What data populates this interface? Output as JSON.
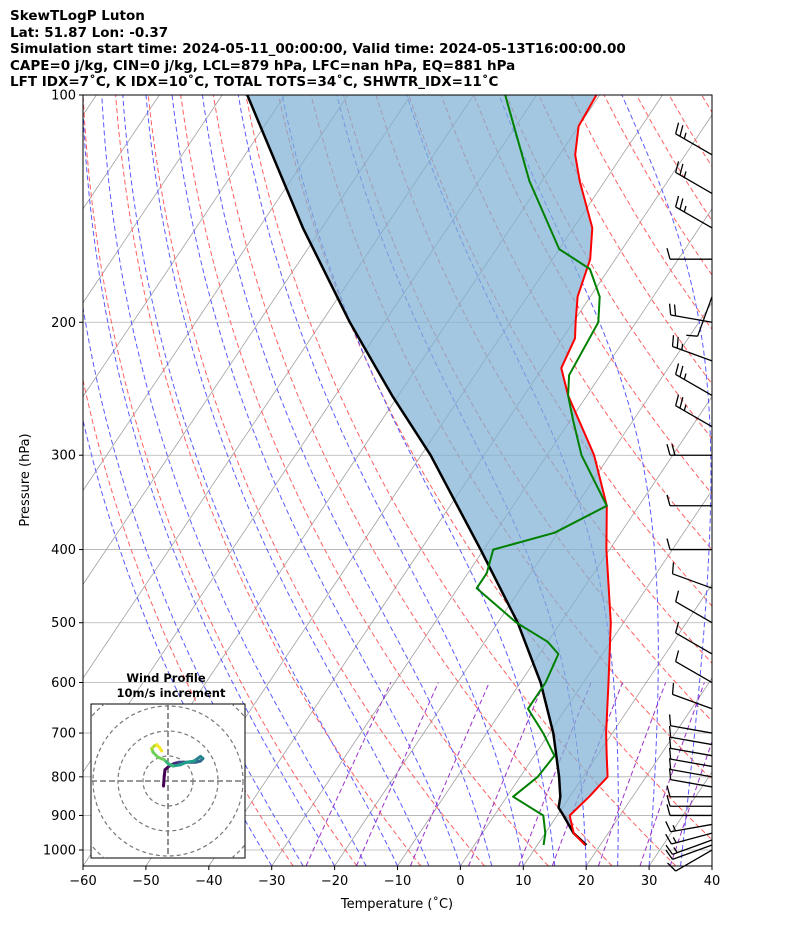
{
  "header": {
    "title": "SkewTLogP Luton",
    "location": "Lat: 51.87   Lon: -0.37",
    "times": "Simulation start time: 2024-05-11_00:00:00, Valid time: 2024-05-13T16:00:00.00",
    "indices1": "CAPE=0 j/kg, CIN=0 j/kg, LCL=879 hPa, LFC=nan hPa, EQ=881 hPa",
    "indices2": "LFT IDX=7˚C, K IDX=10˚C, TOTAL TOTS=34˚C, SHWTR_IDX=11˚C"
  },
  "chart_data": {
    "type": "line",
    "subtype": "skew-T log-P diagram",
    "xlabel": "Temperature ($^\\circ$C)",
    "ylabel": "Pressure (hPa)",
    "xlim": [
      -60,
      40
    ],
    "ylim": [
      1050,
      100
    ],
    "y_scale": "log",
    "x_ticks": [
      "−60",
      "−50",
      "−40",
      "−30",
      "−20",
      "−10",
      "0",
      "10",
      "20",
      "30",
      "40"
    ],
    "x_tick_values": [
      -60,
      -50,
      -40,
      -30,
      -20,
      -10,
      0,
      10,
      20,
      30,
      40
    ],
    "y_ticks": [
      "1000",
      "900",
      "800",
      "700",
      "600",
      "500",
      "400",
      "300",
      "200",
      "100"
    ],
    "y_tick_values": [
      1000,
      900,
      800,
      700,
      600,
      500,
      400,
      300,
      200,
      100
    ],
    "grid": true,
    "colors": {
      "temperature": "#ff0000",
      "dewpoint": "#008000",
      "parcel": "#000000",
      "cape_fill": "#7fb1d4",
      "dry_adiabats": "#ff6060",
      "moist_adiabats": "#5a5aff",
      "mixing_ratio": "#9b30c8",
      "isotherms": "#a0a0a0"
    },
    "series": [
      {
        "key": "temperature",
        "pressure": [
          985,
          950,
          900,
          850,
          800,
          750,
          700,
          600,
          500,
          400,
          350,
          300,
          250,
          230,
          210,
          200,
          185,
          165,
          150,
          130,
          120,
          110,
          100
        ],
        "temperature": [
          17.6,
          14.5,
          12.0,
          13.1,
          13.9,
          11.5,
          9.0,
          4.0,
          -2.0,
          -10.5,
          -15.1,
          -22.5,
          -33.0,
          -37.0,
          -38.0,
          -39.6,
          -42.0,
          -44.0,
          -47.0,
          -54.0,
          -57.5,
          -60.0,
          -60.5
        ]
      },
      {
        "key": "dewpoint",
        "pressure": [
          985,
          950,
          900,
          850,
          800,
          750,
          700,
          650,
          600,
          550,
          530,
          500,
          450,
          430,
          400,
          380,
          350,
          300,
          270,
          250,
          235,
          200,
          185,
          170,
          160,
          130,
          100
        ],
        "temperature": [
          11.0,
          10.0,
          7.8,
          1.0,
          2.8,
          3.2,
          -1.0,
          -6.0,
          -6.0,
          -7.0,
          -10.0,
          -17.0,
          -27.0,
          -27.0,
          -28.5,
          -20.5,
          -15.1,
          -24.5,
          -29.5,
          -33.0,
          -35.0,
          -36.0,
          -38.5,
          -43.0,
          -50.0,
          -62.0,
          -75.0
        ]
      },
      {
        "key": "parcel",
        "pressure": [
          985,
          950,
          900,
          879,
          850,
          800,
          700,
          600,
          500,
          400,
          300,
          250,
          200,
          150,
          100
        ],
        "temperature": [
          17.8,
          14.5,
          11.0,
          9.4,
          8.5,
          6.2,
          0.6,
          -6.8,
          -16.8,
          -30.5,
          -48.5,
          -61.0,
          -75.5,
          -93.0,
          -116.0
        ]
      }
    ],
    "wind_barbs": {
      "pressure": [
        1000,
        985,
        970,
        950,
        925,
        900,
        875,
        850,
        825,
        800,
        775,
        750,
        725,
        700,
        650,
        600,
        550,
        500,
        450,
        400,
        350,
        300,
        275,
        250,
        225,
        200,
        185,
        165,
        150,
        135,
        120
      ],
      "speed_kt": [
        10,
        12,
        15,
        15,
        14,
        12,
        11,
        10,
        10,
        10,
        10,
        10,
        10,
        10,
        10,
        10,
        10,
        10,
        10,
        10,
        10,
        20,
        25,
        25,
        25,
        20,
        10,
        10,
        25,
        25,
        25
      ],
      "direction_deg": [
        240,
        250,
        250,
        255,
        260,
        270,
        270,
        270,
        280,
        280,
        280,
        280,
        280,
        280,
        290,
        300,
        300,
        300,
        290,
        270,
        270,
        270,
        300,
        300,
        290,
        280,
        200,
        270,
        300,
        300,
        300
      ]
    },
    "hodograph": {
      "title": "Wind Profile",
      "subtitle": "10m/s increment",
      "ring_spacing_ms": 10,
      "u_ms": [
        -1.8,
        -1.5,
        -1.2,
        0.5,
        2.5,
        4.5,
        6.5,
        9.0,
        11.0,
        13.0,
        14.0,
        13.0,
        10.5,
        7.5,
        5.0,
        2.0,
        0.0,
        -1.5,
        -4.0,
        -6.0,
        -6.5,
        -5.5,
        -4.5,
        -3.5,
        -2.5
      ],
      "v_ms": [
        -2.0,
        2.0,
        4.5,
        6.0,
        7.0,
        7.5,
        7.5,
        7.5,
        7.5,
        8.0,
        9.0,
        9.8,
        8.0,
        7.5,
        6.5,
        6.0,
        7.0,
        8.5,
        9.5,
        11.5,
        13.0,
        14.0,
        14.5,
        13.5,
        12.0
      ],
      "colormap": "viridis"
    }
  }
}
